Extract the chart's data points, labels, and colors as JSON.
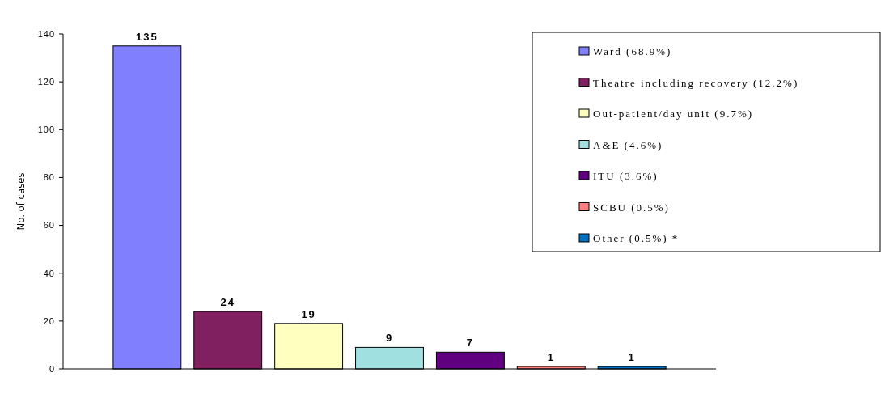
{
  "chart_data": {
    "type": "bar",
    "ylabel": "No. of cases",
    "categories": [
      null
    ],
    "series": [
      {
        "name": "Ward (68.9%)",
        "color": "#8080ff",
        "values": [
          135
        ]
      },
      {
        "name": "Theatre including recovery (12.2%)",
        "color": "#802060",
        "values": [
          24
        ]
      },
      {
        "name": "Out-patient/day unit (9.7%)",
        "color": "#ffffc0",
        "values": [
          19
        ]
      },
      {
        "name": "A&E (4.6%)",
        "color": "#a0e0e0",
        "values": [
          9
        ]
      },
      {
        "name": "ITU (3.6%)",
        "color": "#600080",
        "values": [
          7
        ]
      },
      {
        "name": "SCBU (0.5%)",
        "color": "#ff8080",
        "values": [
          1
        ]
      },
      {
        "name": "Other (0.5%) *",
        "color": "#0070c0",
        "values": [
          1
        ]
      }
    ],
    "ylim": [
      0,
      140
    ],
    "yticks": [
      0,
      20,
      40,
      60,
      80,
      100,
      120,
      140
    ],
    "data_labels": true,
    "legend": "top right",
    "grid": false
  }
}
